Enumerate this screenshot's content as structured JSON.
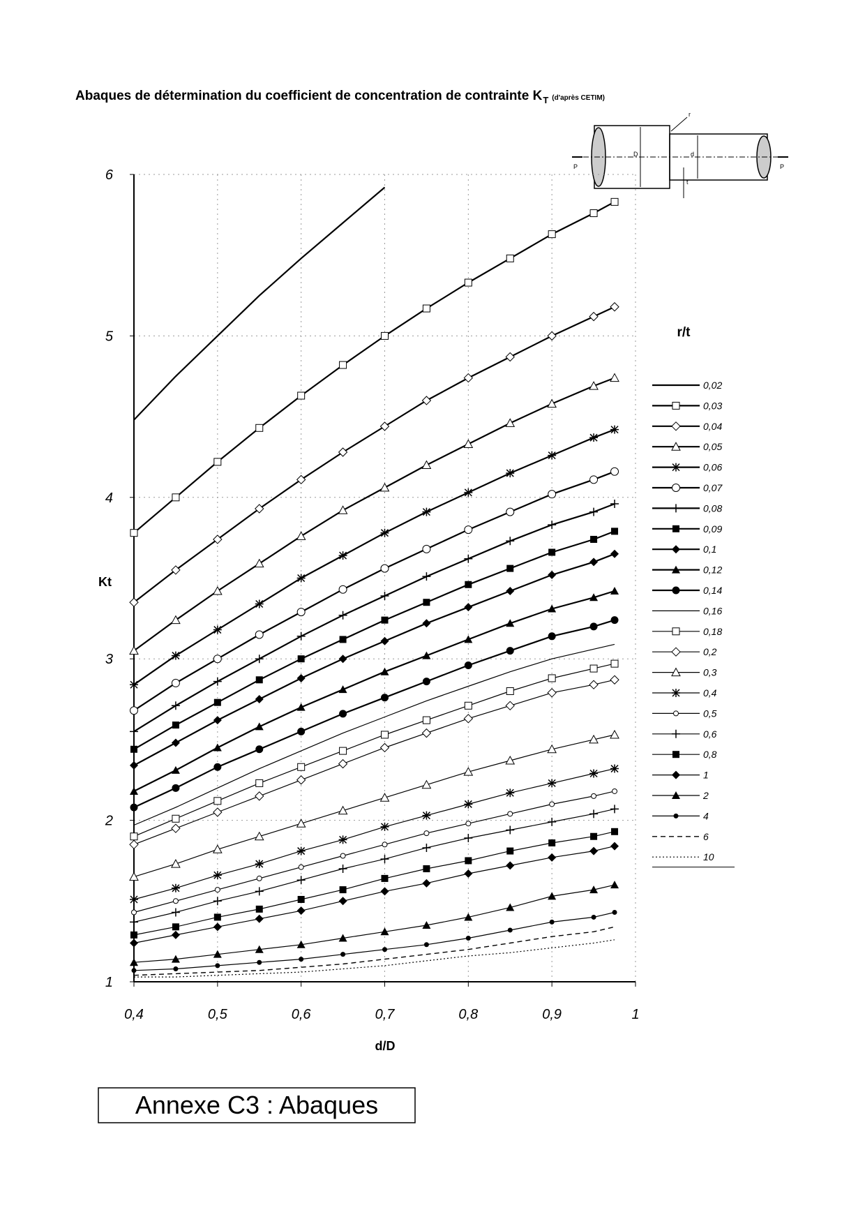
{
  "chart_data": {
    "type": "line",
    "title": "Abaques de détermination du coefficient de concentration de contrainte K",
    "title_subscript": "T",
    "title_note": "(d'après CETIM)",
    "x_label": "d/D",
    "y_label": "Kt",
    "legend_title": "r/t",
    "legend": "right",
    "grid": true,
    "color": "#000000",
    "xlim": [
      0.4,
      1
    ],
    "ylim": [
      1,
      6
    ],
    "xticks": [
      {
        "value": 0.4,
        "label": "0,4"
      },
      {
        "value": 0.5,
        "label": "0,5"
      },
      {
        "value": 0.6,
        "label": "0,6"
      },
      {
        "value": 0.7,
        "label": "0,7"
      },
      {
        "value": 0.8,
        "label": "0,8"
      },
      {
        "value": 0.9,
        "label": "0,9"
      },
      1
    ],
    "yticks": [
      1,
      2,
      3,
      4,
      5,
      6
    ],
    "x": [
      0.4,
      0.45,
      0.5,
      0.55,
      0.6,
      0.65,
      0.7,
      0.75,
      0.8,
      0.85,
      0.9,
      0.95,
      0.975
    ],
    "series": [
      {
        "name": "0,02",
        "marker": "none",
        "style": "solid-thick",
        "values": [
          4.48,
          4.75,
          5.0,
          5.25,
          5.48,
          5.7,
          5.92,
          null,
          null,
          null,
          null,
          null,
          null
        ]
      },
      {
        "name": "0,03",
        "marker": "open-square",
        "style": "solid-thick",
        "values": [
          3.78,
          4.0,
          4.22,
          4.43,
          4.63,
          4.82,
          5.0,
          5.17,
          5.33,
          5.48,
          5.63,
          5.76,
          5.83
        ]
      },
      {
        "name": "0,04",
        "marker": "open-diamond",
        "style": "solid-thick",
        "values": [
          3.35,
          3.55,
          3.74,
          3.93,
          4.11,
          4.28,
          4.44,
          4.6,
          4.74,
          4.87,
          5.0,
          5.12,
          5.18
        ]
      },
      {
        "name": "0,05",
        "marker": "open-triangle",
        "style": "solid-thick",
        "values": [
          3.05,
          3.24,
          3.42,
          3.59,
          3.76,
          3.92,
          4.06,
          4.2,
          4.33,
          4.46,
          4.58,
          4.69,
          4.74
        ]
      },
      {
        "name": "0,06",
        "marker": "star",
        "style": "solid-thick",
        "values": [
          2.84,
          3.02,
          3.18,
          3.34,
          3.5,
          3.64,
          3.78,
          3.91,
          4.03,
          4.15,
          4.26,
          4.37,
          4.42
        ]
      },
      {
        "name": "0,07",
        "marker": "open-circle",
        "style": "solid-thick",
        "values": [
          2.68,
          2.85,
          3.0,
          3.15,
          3.29,
          3.43,
          3.56,
          3.68,
          3.8,
          3.91,
          4.02,
          4.11,
          4.16
        ]
      },
      {
        "name": "0,08",
        "marker": "plus",
        "style": "solid-thick",
        "values": [
          2.55,
          2.71,
          2.86,
          3.0,
          3.14,
          3.27,
          3.39,
          3.51,
          3.62,
          3.73,
          3.83,
          3.91,
          3.96
        ]
      },
      {
        "name": "0,09",
        "marker": "filled-square",
        "style": "solid-thick",
        "values": [
          2.44,
          2.59,
          2.73,
          2.87,
          3.0,
          3.12,
          3.24,
          3.35,
          3.46,
          3.56,
          3.66,
          3.74,
          3.79
        ]
      },
      {
        "name": "0,1",
        "marker": "filled-diamond",
        "style": "solid-thick",
        "values": [
          2.34,
          2.48,
          2.62,
          2.75,
          2.88,
          3.0,
          3.11,
          3.22,
          3.32,
          3.42,
          3.52,
          3.6,
          3.65
        ]
      },
      {
        "name": "0,12",
        "marker": "filled-triangle",
        "style": "solid-thick",
        "values": [
          2.18,
          2.31,
          2.45,
          2.58,
          2.7,
          2.81,
          2.92,
          3.02,
          3.12,
          3.22,
          3.31,
          3.38,
          3.42
        ]
      },
      {
        "name": "0,14",
        "marker": "filled-circle",
        "style": "solid-thick",
        "values": [
          2.08,
          2.2,
          2.33,
          2.44,
          2.55,
          2.66,
          2.76,
          2.86,
          2.96,
          3.05,
          3.14,
          3.2,
          3.24
        ]
      },
      {
        "name": "0,16",
        "marker": "none",
        "style": "solid",
        "values": [
          1.97,
          2.08,
          2.2,
          2.32,
          2.43,
          2.54,
          2.64,
          2.74,
          2.83,
          2.92,
          3.0,
          3.06,
          3.09
        ]
      },
      {
        "name": "0,18",
        "marker": "open-square",
        "style": "solid",
        "values": [
          1.9,
          2.01,
          2.12,
          2.23,
          2.33,
          2.43,
          2.53,
          2.62,
          2.71,
          2.8,
          2.88,
          2.94,
          2.97
        ]
      },
      {
        "name": "0,2",
        "marker": "open-diamond",
        "style": "solid",
        "values": [
          1.85,
          1.95,
          2.05,
          2.15,
          2.25,
          2.35,
          2.45,
          2.54,
          2.63,
          2.71,
          2.79,
          2.84,
          2.87
        ]
      },
      {
        "name": "0,3",
        "marker": "open-triangle",
        "style": "solid",
        "values": [
          1.65,
          1.73,
          1.82,
          1.9,
          1.98,
          2.06,
          2.14,
          2.22,
          2.3,
          2.37,
          2.44,
          2.5,
          2.53
        ]
      },
      {
        "name": "0,4",
        "marker": "star",
        "style": "solid",
        "values": [
          1.51,
          1.58,
          1.66,
          1.73,
          1.81,
          1.88,
          1.96,
          2.03,
          2.1,
          2.17,
          2.23,
          2.29,
          2.32
        ]
      },
      {
        "name": "0,5",
        "marker": "small-open-circle",
        "style": "solid",
        "values": [
          1.43,
          1.5,
          1.57,
          1.64,
          1.71,
          1.78,
          1.85,
          1.92,
          1.98,
          2.04,
          2.1,
          2.15,
          2.18
        ]
      },
      {
        "name": "0,6",
        "marker": "plus",
        "style": "solid",
        "values": [
          1.37,
          1.43,
          1.5,
          1.56,
          1.63,
          1.7,
          1.76,
          1.83,
          1.89,
          1.94,
          1.99,
          2.04,
          2.07
        ]
      },
      {
        "name": "0,8",
        "marker": "filled-square",
        "style": "solid",
        "values": [
          1.29,
          1.34,
          1.4,
          1.45,
          1.51,
          1.57,
          1.64,
          1.7,
          1.75,
          1.81,
          1.86,
          1.9,
          1.93
        ]
      },
      {
        "name": "1",
        "marker": "filled-diamond",
        "style": "solid",
        "values": [
          1.24,
          1.29,
          1.34,
          1.39,
          1.44,
          1.5,
          1.56,
          1.61,
          1.67,
          1.72,
          1.77,
          1.81,
          1.84
        ]
      },
      {
        "name": "2",
        "marker": "filled-triangle",
        "style": "solid",
        "values": [
          1.12,
          1.14,
          1.17,
          1.2,
          1.23,
          1.27,
          1.31,
          1.35,
          1.4,
          1.46,
          1.53,
          1.57,
          1.6
        ]
      },
      {
        "name": "4",
        "marker": "small-filled-circle",
        "style": "solid",
        "values": [
          1.07,
          1.08,
          1.1,
          1.12,
          1.14,
          1.17,
          1.2,
          1.23,
          1.27,
          1.32,
          1.37,
          1.4,
          1.43
        ]
      },
      {
        "name": "6",
        "marker": "none",
        "style": "dashed",
        "values": [
          1.04,
          1.05,
          1.06,
          1.07,
          1.09,
          1.11,
          1.14,
          1.17,
          1.2,
          1.24,
          1.28,
          1.31,
          1.34
        ]
      },
      {
        "name": "10",
        "marker": "none",
        "style": "dotted",
        "values": [
          1.03,
          1.03,
          1.04,
          1.05,
          1.06,
          1.08,
          1.1,
          1.13,
          1.16,
          1.18,
          1.21,
          1.24,
          1.26
        ]
      }
    ],
    "inset_labels": [
      "r",
      "D",
      "d",
      "P",
      "P",
      "t"
    ]
  },
  "annex": "Annexe C3 : Abaques"
}
